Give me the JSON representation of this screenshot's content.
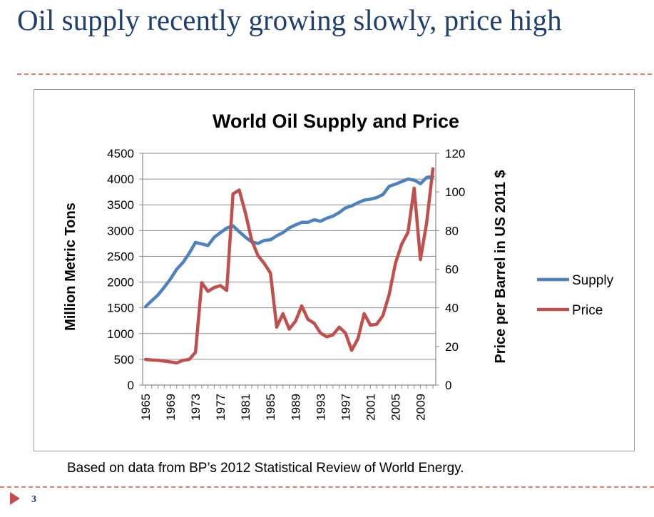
{
  "slide": {
    "title": "Oil supply recently growing slowly, price high",
    "caption": "Based on data from BP’s 2012 Statistical Review of World Energy.",
    "page_number": "3",
    "colors": {
      "title": "#1f3f6e",
      "rule": "#d4826f",
      "marker": "#c0504d"
    }
  },
  "chart_data": {
    "type": "line",
    "title": "World Oil Supply and Price",
    "ylabel": "Million Metric Tons",
    "y2label": "Price per Barrel in US 2011 $",
    "x": [
      1965,
      1966,
      1967,
      1968,
      1969,
      1970,
      1971,
      1972,
      1973,
      1974,
      1975,
      1976,
      1977,
      1978,
      1979,
      1980,
      1981,
      1982,
      1983,
      1984,
      1985,
      1986,
      1987,
      1988,
      1989,
      1990,
      1991,
      1992,
      1993,
      1994,
      1995,
      1996,
      1997,
      1998,
      1999,
      2000,
      2001,
      2002,
      2003,
      2004,
      2005,
      2006,
      2007,
      2008,
      2009,
      2010,
      2011
    ],
    "xticks": [
      "1965",
      "1969",
      "1973",
      "1977",
      "1981",
      "1985",
      "1989",
      "1993",
      "1997",
      "2001",
      "2005",
      "2009"
    ],
    "ylim": [
      0,
      4500
    ],
    "yticks": [
      "0",
      "500",
      "1000",
      "1500",
      "2000",
      "2500",
      "3000",
      "3500",
      "4000",
      "4500"
    ],
    "y2lim": [
      0,
      120
    ],
    "y2ticks": [
      "0",
      "20",
      "40",
      "60",
      "80",
      "100",
      "120"
    ],
    "grid": true,
    "legend": "right",
    "series": [
      {
        "name": "Supply",
        "axis": "left",
        "color": "#4f81bd",
        "values": [
          1520,
          1640,
          1750,
          1900,
          2060,
          2250,
          2380,
          2560,
          2770,
          2740,
          2710,
          2870,
          2960,
          3050,
          3090,
          2980,
          2870,
          2780,
          2750,
          2810,
          2820,
          2900,
          2960,
          3050,
          3110,
          3160,
          3160,
          3210,
          3180,
          3240,
          3280,
          3350,
          3440,
          3480,
          3540,
          3590,
          3610,
          3640,
          3700,
          3860,
          3900,
          3950,
          4000,
          3980,
          3910,
          4030,
          4050
        ]
      },
      {
        "name": "Price",
        "axis": "right",
        "color": "#c0504d",
        "values": [
          13.3,
          13,
          12.8,
          12.4,
          12,
          11.5,
          12.8,
          13.3,
          17,
          53,
          48.5,
          50.5,
          51.5,
          49,
          99,
          101,
          89,
          75,
          67,
          63,
          58,
          30,
          37,
          29,
          33,
          41,
          34,
          32,
          27,
          25,
          26,
          30,
          27,
          18,
          24,
          37,
          31,
          31.5,
          36,
          47,
          63,
          73,
          79,
          102,
          65,
          84,
          112
        ]
      }
    ]
  }
}
